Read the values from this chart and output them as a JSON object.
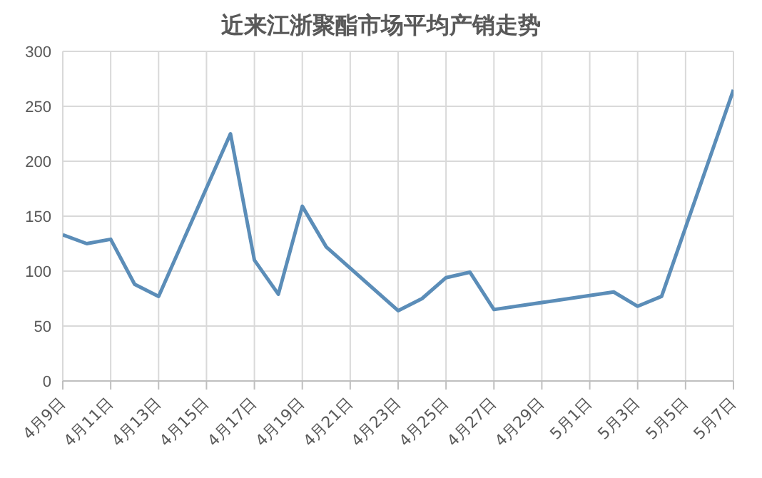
{
  "chart_data": {
    "type": "line",
    "title": "近来江浙聚酯市场平均产销走势",
    "x": [
      "--04-09",
      "--04-10",
      "--04-11",
      "--04-12",
      "--04-13",
      "--04-16",
      "--04-17",
      "--04-18",
      "--04-19",
      "--04-20",
      "--04-23",
      "--04-24",
      "--04-25",
      "--04-26",
      "--04-27",
      "--05-02",
      "--05-03",
      "--05-04",
      "--05-07"
    ],
    "series": [
      {
        "color": "#5b8db8",
        "values": [
          133,
          125,
          129,
          88,
          77,
          225,
          110,
          79,
          159,
          122,
          64,
          75,
          94,
          99,
          65,
          81,
          68,
          77,
          265
        ]
      }
    ],
    "xlim": [
      "--04-09",
      "--05-07"
    ],
    "xticks": [
      {
        "value": "--04-09",
        "label": "4月9日"
      },
      {
        "value": "--04-11",
        "label": "4月11日"
      },
      {
        "value": "--04-13",
        "label": "4月13日"
      },
      {
        "value": "--04-15",
        "label": "4月15日"
      },
      {
        "value": "--04-17",
        "label": "4月17日"
      },
      {
        "value": "--04-19",
        "label": "4月19日"
      },
      {
        "value": "--04-21",
        "label": "4月21日"
      },
      {
        "value": "--04-23",
        "label": "4月23日"
      },
      {
        "value": "--04-25",
        "label": "4月25日"
      },
      {
        "value": "--04-27",
        "label": "4月27日"
      },
      {
        "value": "--04-29",
        "label": "4月29日"
      },
      {
        "value": "--05-01",
        "label": "5月1日"
      },
      {
        "value": "--05-03",
        "label": "5月3日"
      },
      {
        "value": "--05-05",
        "label": "5月5日"
      },
      {
        "value": "--05-07",
        "label": "5月7日"
      }
    ],
    "ylim": [
      0,
      300
    ],
    "yticks": [
      0,
      50,
      100,
      150,
      200,
      250,
      300
    ],
    "grid": true,
    "legend": false,
    "marker": "none",
    "line_style": "solid"
  }
}
